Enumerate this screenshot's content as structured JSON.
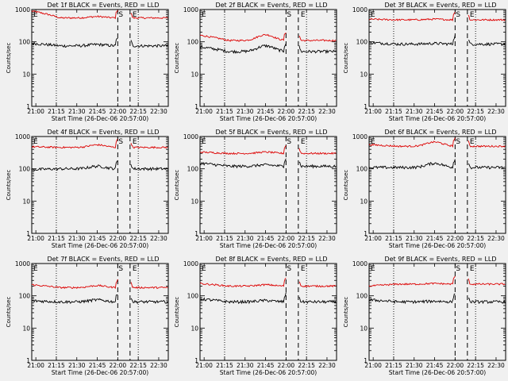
{
  "figure": {
    "ylabel": "Counts/sec",
    "xlabel": "Start Time (26-Dec-06 20:57:00)",
    "start_marker": "S",
    "end_marker": "E",
    "colors": {
      "events": "#000000",
      "lld": "#dd0000"
    }
  },
  "chart_data": [
    {
      "type": "line",
      "title": "Det 1f BLACK = Events, RED = LLD",
      "xlabel": "Start Time (26-Dec-06 20:57:00)",
      "ylabel": "Counts/sec",
      "ylog": true,
      "ylim": [
        1,
        1000
      ],
      "x_ticks": [
        "21:00",
        "21:15",
        "21:30",
        "21:45",
        "22:00",
        "22:15",
        "22:30"
      ],
      "y_ticks": [
        "1",
        "10",
        "100",
        "1000"
      ],
      "dotted_x": [
        "21:15",
        "22:15"
      ],
      "dashed_x": [
        "22:00",
        "22:09"
      ],
      "gap": [
        "22:00",
        "22:09"
      ],
      "red_start": 900,
      "red_level": 550,
      "black_level": 75,
      "black_start": 90,
      "hump": 1.1
    },
    {
      "type": "line",
      "title": "Det 2f BLACK = Events, RED = LLD",
      "xlabel": "Start Time (26-Dec-06 20:57:00)",
      "ylabel": "Counts/sec",
      "ylog": true,
      "ylim": [
        1,
        1000
      ],
      "x_ticks": [
        "21:00",
        "21:15",
        "21:30",
        "21:45",
        "22:00",
        "22:15",
        "22:30"
      ],
      "y_ticks": [
        "1",
        "10",
        "100",
        "1000"
      ],
      "dotted_x": [
        "21:15",
        "22:15"
      ],
      "dashed_x": [
        "22:00",
        "22:09"
      ],
      "gap": [
        "22:00",
        "22:09"
      ],
      "red_start": 160,
      "red_level": 110,
      "black_level": 50,
      "black_start": 70,
      "hump": 1.5
    },
    {
      "type": "line",
      "title": "Det 3f BLACK = Events, RED = LLD",
      "xlabel": "Start Time (26-Dec-06 20:57:00)",
      "ylabel": "Counts/sec",
      "ylog": true,
      "ylim": [
        1,
        1000
      ],
      "x_ticks": [
        "21:00",
        "21:15",
        "21:30",
        "21:45",
        "22:00",
        "22:15",
        "22:30"
      ],
      "y_ticks": [
        "1",
        "10",
        "100",
        "1000"
      ],
      "dotted_x": [
        "21:15",
        "22:15"
      ],
      "dashed_x": [
        "22:00",
        "22:09"
      ],
      "gap": [
        "22:00",
        "22:09"
      ],
      "red_start": 500,
      "red_level": 480,
      "black_level": 85,
      "black_start": 95,
      "hump": 1.05
    },
    {
      "type": "line",
      "title": "Det 4f BLACK = Events, RED = LLD",
      "xlabel": "Start Time (26-Dec-06 20:57:00)",
      "ylabel": "Counts/sec",
      "ylog": true,
      "ylim": [
        1,
        1000
      ],
      "x_ticks": [
        "21:00",
        "21:15",
        "21:30",
        "21:45",
        "22:00",
        "22:15",
        "22:30"
      ],
      "y_ticks": [
        "1",
        "10",
        "100",
        "1000"
      ],
      "dotted_x": [
        "21:15",
        "22:15"
      ],
      "dashed_x": [
        "22:00",
        "22:09"
      ],
      "gap": [
        "22:00",
        "22:09"
      ],
      "red_start": 480,
      "red_level": 460,
      "black_level": 100,
      "black_start": 95,
      "hump": 1.2
    },
    {
      "type": "line",
      "title": "Det 5f BLACK = Events, RED = LLD",
      "xlabel": "Start Time (26-Dec-06 20:57:00)",
      "ylabel": "Counts/sec",
      "ylog": true,
      "ylim": [
        1,
        1000
      ],
      "x_ticks": [
        "21:00",
        "21:15",
        "21:30",
        "21:45",
        "22:00",
        "22:15",
        "22:30"
      ],
      "y_ticks": [
        "1",
        "10",
        "100",
        "1000"
      ],
      "dotted_x": [
        "21:15",
        "22:15"
      ],
      "dashed_x": [
        "22:00",
        "22:09"
      ],
      "gap": [
        "22:00",
        "22:09"
      ],
      "red_start": 330,
      "red_level": 300,
      "black_level": 120,
      "black_start": 150,
      "hump": 1.1
    },
    {
      "type": "line",
      "title": "Det 6f BLACK = Events, RED = LLD",
      "xlabel": "Start Time (26-Dec-06 20:57:00)",
      "ylabel": "Counts/sec",
      "ylog": true,
      "ylim": [
        1,
        1000
      ],
      "x_ticks": [
        "21:00",
        "21:15",
        "21:30",
        "21:45",
        "22:00",
        "22:15",
        "22:30"
      ],
      "y_ticks": [
        "1",
        "10",
        "100",
        "1000"
      ],
      "dotted_x": [
        "21:15",
        "22:15"
      ],
      "dashed_x": [
        "22:00",
        "22:09"
      ],
      "gap": [
        "22:00",
        "22:09"
      ],
      "red_start": 560,
      "red_level": 500,
      "black_level": 110,
      "black_start": 110,
      "hump": 1.35
    },
    {
      "type": "line",
      "title": "Det 7f BLACK = Events, RED = LLD",
      "xlabel": "Start Time (26-Dec-06 20:57:00)",
      "ylabel": "Counts/sec",
      "ylog": true,
      "ylim": [
        1,
        1000
      ],
      "x_ticks": [
        "21:00",
        "21:15",
        "21:30",
        "21:45",
        "22:00",
        "22:15",
        "22:30"
      ],
      "y_ticks": [
        "1",
        "10",
        "100",
        "1000"
      ],
      "dotted_x": [
        "21:15",
        "22:15"
      ],
      "dashed_x": [
        "22:00",
        "22:09"
      ],
      "gap": [
        "22:00",
        "22:09"
      ],
      "red_start": 220,
      "red_level": 180,
      "black_level": 65,
      "black_start": 70,
      "hump": 1.15
    },
    {
      "type": "line",
      "title": "Det 8f BLACK = Events, RED = LLD",
      "xlabel": "Start Time (26-Dec-06 20:57:00)",
      "ylabel": "Counts/sec",
      "ylog": true,
      "ylim": [
        1,
        1000
      ],
      "x_ticks": [
        "21:00",
        "21:15",
        "21:30",
        "21:45",
        "22:00",
        "22:15",
        "22:30"
      ],
      "y_ticks": [
        "1",
        "10",
        "100",
        "1000"
      ],
      "dotted_x": [
        "21:15",
        "22:15"
      ],
      "dashed_x": [
        "22:00",
        "22:09"
      ],
      "gap": [
        "22:00",
        "22:09"
      ],
      "red_start": 240,
      "red_level": 200,
      "black_level": 65,
      "black_start": 80,
      "hump": 1.1
    },
    {
      "type": "line",
      "title": "Det 9f BLACK = Events, RED = LLD",
      "xlabel": "Start Time (26-Dec-06 20:57:00)",
      "ylabel": "Counts/sec",
      "ylog": true,
      "ylim": [
        1,
        1000
      ],
      "x_ticks": [
        "21:00",
        "21:15",
        "21:30",
        "21:45",
        "22:00",
        "22:15",
        "22:30"
      ],
      "y_ticks": [
        "1",
        "10",
        "100",
        "1000"
      ],
      "dotted_x": [
        "21:15",
        "22:15"
      ],
      "dashed_x": [
        "22:00",
        "22:09"
      ],
      "gap": [
        "22:00",
        "22:09"
      ],
      "red_start": 200,
      "red_level": 230,
      "black_level": 65,
      "black_start": 75,
      "hump": 1.05
    }
  ]
}
